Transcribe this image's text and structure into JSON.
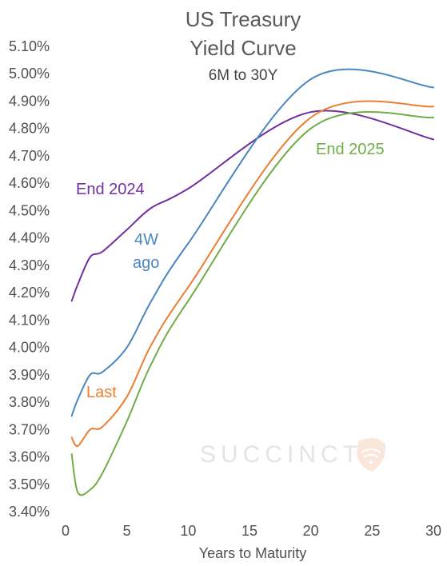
{
  "chart_data": {
    "type": "line",
    "title": [
      "US Treasury",
      "Yield Curve"
    ],
    "subtitle": "6M to 30Y",
    "xlabel": "Years to Maturity",
    "ylabel": "",
    "xlim": [
      0,
      30
    ],
    "ylim": [
      3.4,
      5.1
    ],
    "x_ticks": [
      0,
      5,
      10,
      15,
      20,
      25,
      30
    ],
    "y_ticks": [
      "3.40%",
      "3.50%",
      "3.60%",
      "3.70%",
      "3.80%",
      "3.90%",
      "4.00%",
      "4.10%",
      "4.20%",
      "4.30%",
      "4.40%",
      "4.50%",
      "4.60%",
      "4.70%",
      "4.80%",
      "4.90%",
      "5.00%",
      "5.10%"
    ],
    "grid": false,
    "legend": "inline labels",
    "series": [
      {
        "name": "End 2024",
        "color": "#7030a0",
        "x": [
          0.5,
          1,
          2,
          3,
          5,
          7,
          10,
          20,
          30
        ],
        "y": [
          4.17,
          4.23,
          4.33,
          4.35,
          4.43,
          4.51,
          4.58,
          4.86,
          4.76
        ]
      },
      {
        "name": "4W ago",
        "color": "#4a86c0",
        "x": [
          0.5,
          1,
          2,
          3,
          5,
          7,
          10,
          20,
          30
        ],
        "y": [
          3.75,
          3.81,
          3.9,
          3.91,
          4.0,
          4.17,
          4.38,
          4.98,
          4.95
        ]
      },
      {
        "name": "Last",
        "color": "#ed7d31",
        "x": [
          0.5,
          1,
          2,
          3,
          5,
          7,
          10,
          20,
          30
        ],
        "y": [
          3.67,
          3.64,
          3.7,
          3.71,
          3.82,
          4.01,
          4.22,
          4.84,
          4.88
        ]
      },
      {
        "name": "End 2025",
        "color": "#70ad47",
        "x": [
          0.5,
          1,
          2,
          3,
          5,
          7,
          10,
          20,
          30
        ],
        "y": [
          3.61,
          3.47,
          3.48,
          3.54,
          3.73,
          3.94,
          4.17,
          4.8,
          4.84
        ]
      }
    ]
  },
  "watermark": "SUCCINCT"
}
